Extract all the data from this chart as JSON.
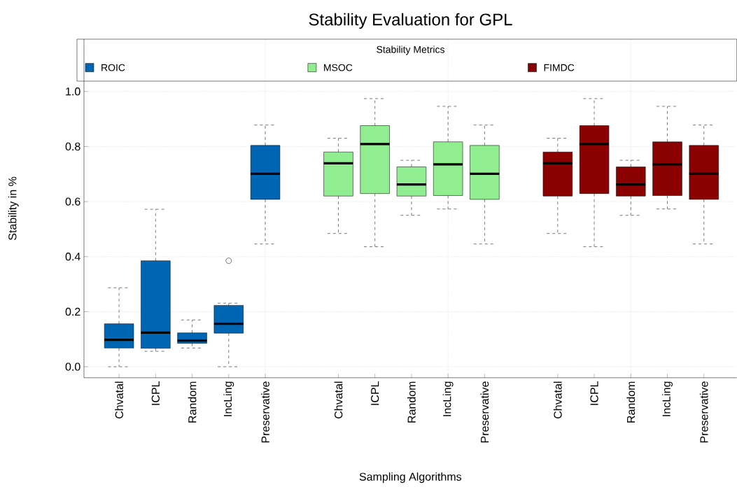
{
  "chart_data": {
    "type": "box",
    "title": "Stability Evaluation for GPL",
    "xlabel": "Sampling Algorithms",
    "ylabel": "Stability in %",
    "legend_title": "Stability Metrics",
    "categories": [
      "Chvatal",
      "ICPL",
      "Random",
      "IncLing",
      "Preservative",
      null,
      "Chvatal",
      "ICPL",
      "Random",
      "IncLing",
      "Preservative",
      null,
      "Chvatal",
      "ICPL",
      "Random",
      "IncLing",
      "Preservative"
    ],
    "series": [
      {
        "name": "ROIC",
        "color": "#0066b3",
        "boxes": [
          {
            "low": 0.0,
            "q1": 0.068,
            "median": 0.098,
            "q3": 0.156,
            "high": 0.287
          },
          {
            "low": 0.056,
            "q1": 0.067,
            "median": 0.124,
            "q3": 0.385,
            "high": 0.572
          },
          {
            "low": 0.068,
            "q1": 0.085,
            "median": 0.095,
            "q3": 0.123,
            "high": 0.17
          },
          {
            "low": 0.0,
            "q1": 0.122,
            "median": 0.156,
            "q3": 0.223,
            "high": 0.231,
            "outliers": [
              0.385
            ]
          },
          {
            "low": 0.446,
            "q1": 0.608,
            "median": 0.701,
            "q3": 0.804,
            "high": 0.878
          },
          null,
          null,
          null,
          null,
          null,
          null,
          null,
          null,
          null,
          null,
          null,
          null
        ]
      },
      {
        "name": "MSOC",
        "color": "#90ee90",
        "boxes": [
          null,
          null,
          null,
          null,
          null,
          null,
          {
            "low": 0.484,
            "q1": 0.62,
            "median": 0.739,
            "q3": 0.78,
            "high": 0.83
          },
          {
            "low": 0.436,
            "q1": 0.629,
            "median": 0.809,
            "q3": 0.876,
            "high": 0.974
          },
          {
            "low": 0.55,
            "q1": 0.62,
            "median": 0.662,
            "q3": 0.726,
            "high": 0.75
          },
          {
            "low": 0.573,
            "q1": 0.622,
            "median": 0.735,
            "q3": 0.817,
            "high": 0.946
          },
          {
            "low": 0.446,
            "q1": 0.608,
            "median": 0.701,
            "q3": 0.804,
            "high": 0.878
          },
          null,
          null,
          null,
          null,
          null,
          null
        ]
      },
      {
        "name": "FIMDC",
        "color": "#8b0000",
        "boxes": [
          null,
          null,
          null,
          null,
          null,
          null,
          null,
          null,
          null,
          null,
          null,
          null,
          {
            "low": 0.484,
            "q1": 0.62,
            "median": 0.739,
            "q3": 0.78,
            "high": 0.83
          },
          {
            "low": 0.436,
            "q1": 0.629,
            "median": 0.809,
            "q3": 0.876,
            "high": 0.974
          },
          {
            "low": 0.55,
            "q1": 0.62,
            "median": 0.662,
            "q3": 0.726,
            "high": 0.75
          },
          {
            "low": 0.573,
            "q1": 0.622,
            "median": 0.735,
            "q3": 0.817,
            "high": 0.946
          },
          {
            "low": 0.446,
            "q1": 0.608,
            "median": 0.701,
            "q3": 0.804,
            "high": 0.878
          }
        ]
      }
    ],
    "ylim": [
      -0.04,
      1.19
    ],
    "yticks": [
      {
        "value": 0,
        "label": "0.0"
      },
      {
        "value": 0.2,
        "label": "0.2"
      },
      {
        "value": 0.4,
        "label": "0.4"
      },
      {
        "value": 0.6,
        "label": "0.6"
      },
      {
        "value": 0.8,
        "label": "0.8"
      },
      {
        "value": 1,
        "label": "1.0"
      }
    ],
    "grid": true,
    "legend": "top"
  }
}
